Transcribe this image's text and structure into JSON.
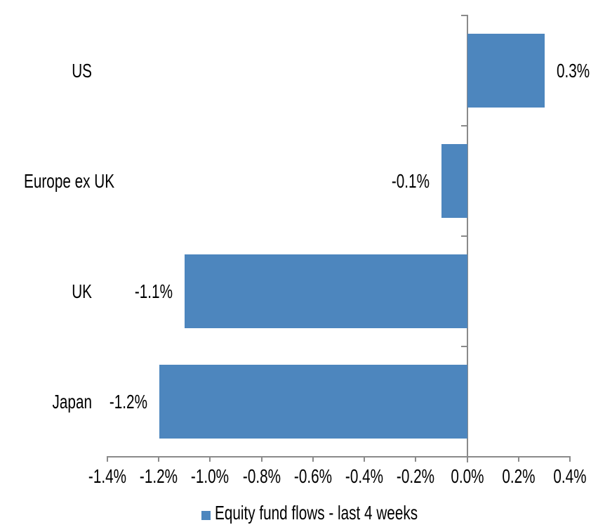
{
  "chart_data": {
    "type": "bar",
    "orientation": "horizontal",
    "title": "",
    "xlabel": "",
    "ylabel": "",
    "categories": [
      "US",
      "Europe ex UK",
      "UK",
      "Japan"
    ],
    "series": [
      {
        "name": "Equity fund flows - last 4 weeks",
        "values": [
          0.3,
          -0.1,
          -1.1,
          -1.2
        ],
        "data_labels": [
          "0.3%",
          "-0.1%",
          "-1.1%",
          "-1.2%"
        ]
      }
    ],
    "value_unit": "%",
    "xlim": [
      -1.4,
      0.4
    ],
    "x_tick_values": [
      -1.4,
      -1.2,
      -1.0,
      -0.8,
      -0.6,
      -0.4,
      -0.2,
      0.0,
      0.2,
      0.4
    ],
    "x_tick_labels": [
      "-1.4%",
      "-1.2%",
      "-1.0%",
      "-0.8%",
      "-0.6%",
      "-0.4%",
      "-0.2%",
      "0.0%",
      "0.2%",
      "0.4%"
    ],
    "grid": false,
    "legend_position": "bottom",
    "colors": {
      "bar": "#4D86BE",
      "axis": "#8A8A8A",
      "text": "#000000",
      "background": "#ffffff"
    }
  },
  "legend": {
    "label": "Equity fund flows - last 4 weeks"
  }
}
